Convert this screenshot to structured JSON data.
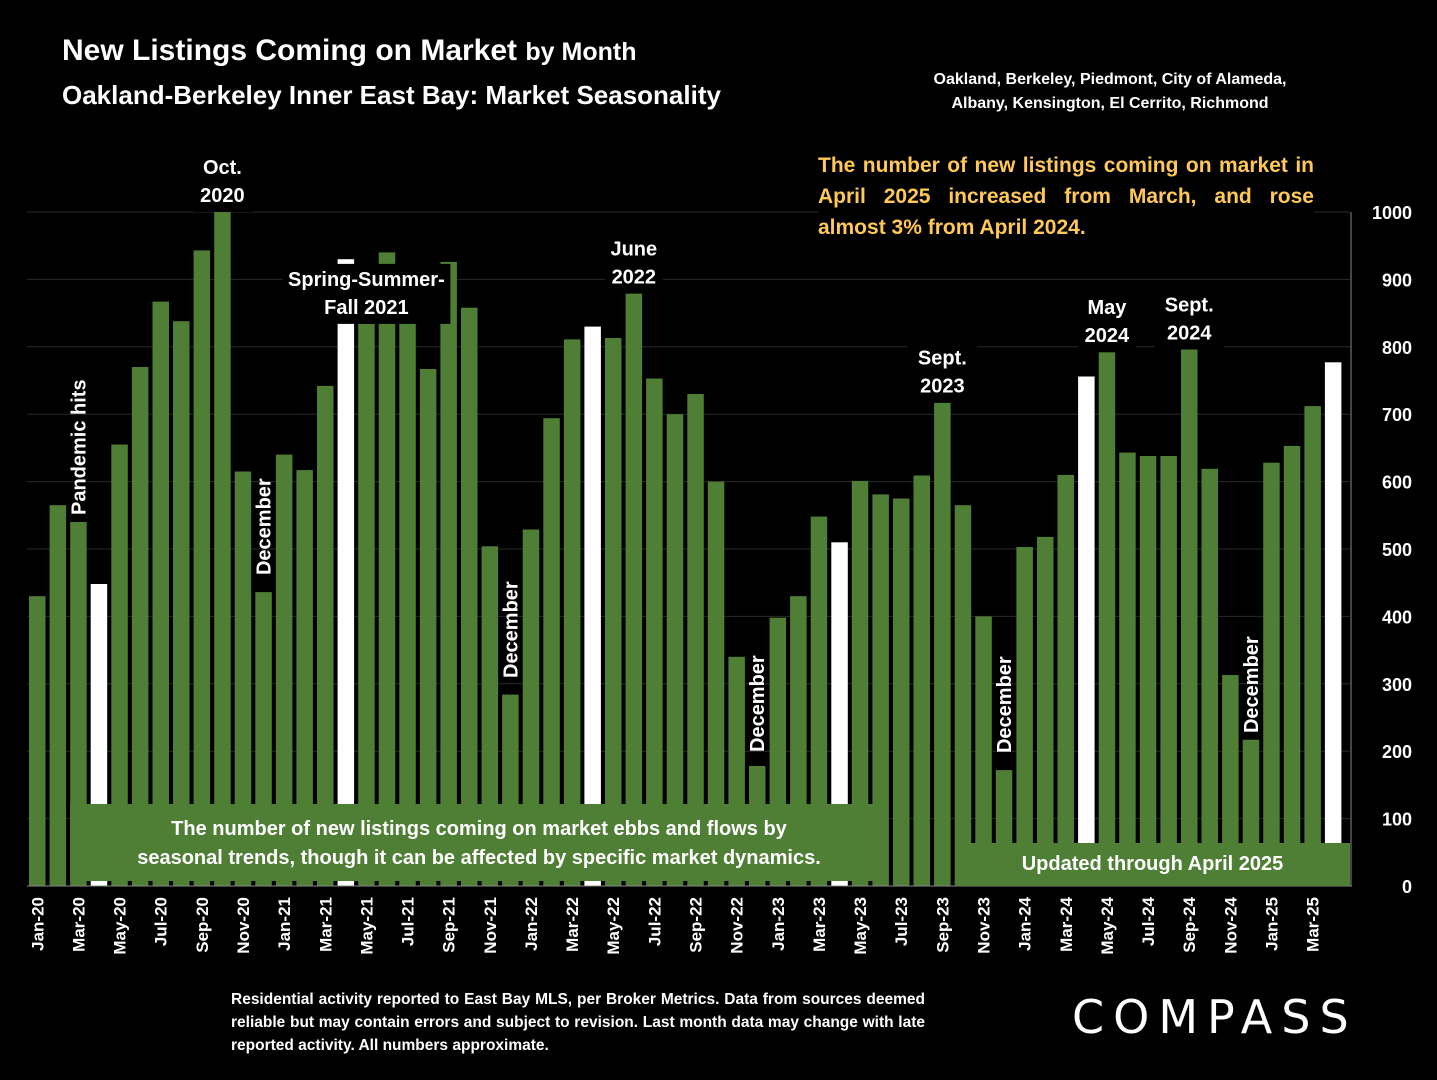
{
  "header": {
    "title_main": "New Listings Coming on Market",
    "title_suffix": "by Month",
    "subtitle": "Oakland-Berkeley Inner East Bay: Market Seasonality",
    "region_line1": "Oakland, Berkeley, Piedmont, City of Alameda,",
    "region_line2": "Albany, Kensington, El Cerrito, Richmond"
  },
  "callout": "The number of new listings coming on market in April 2025 increased from March, and rose almost 3% from April 2024.",
  "box_left_line1": "The number of new listings coming on market ebbs and flows by",
  "box_left_line2": "seasonal trends, though it can be affected by specific market dynamics.",
  "box_right": "Updated through April 2025",
  "footnote": "Residential activity reported to East Bay MLS, per Broker Metrics. Data from sources deemed reliable but may contain errors and subject to revision. Last month data may change with late reported activity. All numbers approximate.",
  "logo": "COMPASS",
  "colors": {
    "bar": "#4f7f35",
    "highlight": "#ffffff",
    "callout": "#ffc857",
    "background": "#000000"
  },
  "annotations": [
    {
      "lines": [
        "Oct.",
        "2020"
      ],
      "month_index": 9,
      "vertical": false
    },
    {
      "lines": [
        "Spring-Summer-",
        "Fall  2021"
      ],
      "month_index": 16,
      "vertical": false
    },
    {
      "lines": [
        "June",
        "2022"
      ],
      "month_index": 29,
      "vertical": false
    },
    {
      "lines": [
        "Sept.",
        "2023"
      ],
      "month_index": 44,
      "vertical": false
    },
    {
      "lines": [
        "May",
        "2024"
      ],
      "month_index": 52,
      "vertical": false
    },
    {
      "lines": [
        "Sept.",
        "2024"
      ],
      "month_index": 56,
      "vertical": false
    },
    {
      "lines": [
        "Pandemic hits"
      ],
      "month_index": 2,
      "vertical": true
    },
    {
      "lines": [
        "December"
      ],
      "month_index": 11,
      "vertical": true
    },
    {
      "lines": [
        "December"
      ],
      "month_index": 23,
      "vertical": true
    },
    {
      "lines": [
        "December"
      ],
      "month_index": 35,
      "vertical": true
    },
    {
      "lines": [
        "December"
      ],
      "month_index": 47,
      "vertical": true
    },
    {
      "lines": [
        "December"
      ],
      "month_index": 59,
      "vertical": true
    }
  ],
  "chart_data": {
    "type": "bar",
    "title": "New Listings Coming on Market by Month",
    "ylim": [
      0,
      1000
    ],
    "yticks": [
      0,
      100,
      200,
      300,
      400,
      500,
      600,
      700,
      800,
      900,
      1000
    ],
    "y_axis_side": "right",
    "categories": [
      "Jan-20",
      "Feb-20",
      "Mar-20",
      "Apr-20",
      "May-20",
      "Jun-20",
      "Jul-20",
      "Aug-20",
      "Sep-20",
      "Oct-20",
      "Nov-20",
      "Dec-20",
      "Jan-21",
      "Feb-21",
      "Mar-21",
      "Apr-21",
      "May-21",
      "Jun-21",
      "Jul-21",
      "Aug-21",
      "Sep-21",
      "Oct-21",
      "Nov-21",
      "Dec-21",
      "Jan-22",
      "Feb-22",
      "Mar-22",
      "Apr-22",
      "May-22",
      "Jun-22",
      "Jul-22",
      "Aug-22",
      "Sep-22",
      "Oct-22",
      "Nov-22",
      "Dec-22",
      "Jan-23",
      "Feb-23",
      "Mar-23",
      "Apr-23",
      "May-23",
      "Jun-23",
      "Jul-23",
      "Aug-23",
      "Sep-23",
      "Oct-23",
      "Nov-23",
      "Dec-23",
      "Jan-24",
      "Feb-24",
      "Mar-24",
      "Apr-24",
      "May-24",
      "Jun-24",
      "Jul-24",
      "Aug-24",
      "Sep-24",
      "Oct-24",
      "Nov-24",
      "Dec-24",
      "Jan-25",
      "Feb-25",
      "Mar-25",
      "Apr-25"
    ],
    "x_tick_labels": [
      "Jan-20",
      "Mar-20",
      "May-20",
      "Jul-20",
      "Sep-20",
      "Nov-20",
      "Jan-21",
      "Mar-21",
      "May-21",
      "Jul-21",
      "Sep-21",
      "Nov-21",
      "Jan-22",
      "Mar-22",
      "May-22",
      "Jul-22",
      "Sep-22",
      "Nov-22",
      "Jan-23",
      "Mar-23",
      "May-23",
      "Jul-23",
      "Sep-23",
      "Nov-23",
      "Jan-24",
      "Mar-24",
      "May-24",
      "Jul-24",
      "Sep-24",
      "Nov-24",
      "Jan-25",
      "Mar-25"
    ],
    "values": [
      430,
      565,
      540,
      448,
      655,
      770,
      867,
      838,
      943,
      1000,
      615,
      436,
      640,
      617,
      742,
      930,
      834,
      940,
      920,
      767,
      926,
      858,
      504,
      284,
      529,
      694,
      811,
      830,
      813,
      879,
      753,
      700,
      730,
      600,
      340,
      178,
      398,
      430,
      548,
      510,
      601,
      581,
      575,
      609,
      717,
      565,
      400,
      172,
      503,
      518,
      610,
      756,
      792,
      643,
      638,
      638,
      796,
      619,
      313,
      217,
      628,
      653,
      712,
      777
    ],
    "highlighted": [
      "Apr-20",
      "Apr-21",
      "Apr-22",
      "Apr-23",
      "Apr-24",
      "Apr-25"
    ]
  }
}
